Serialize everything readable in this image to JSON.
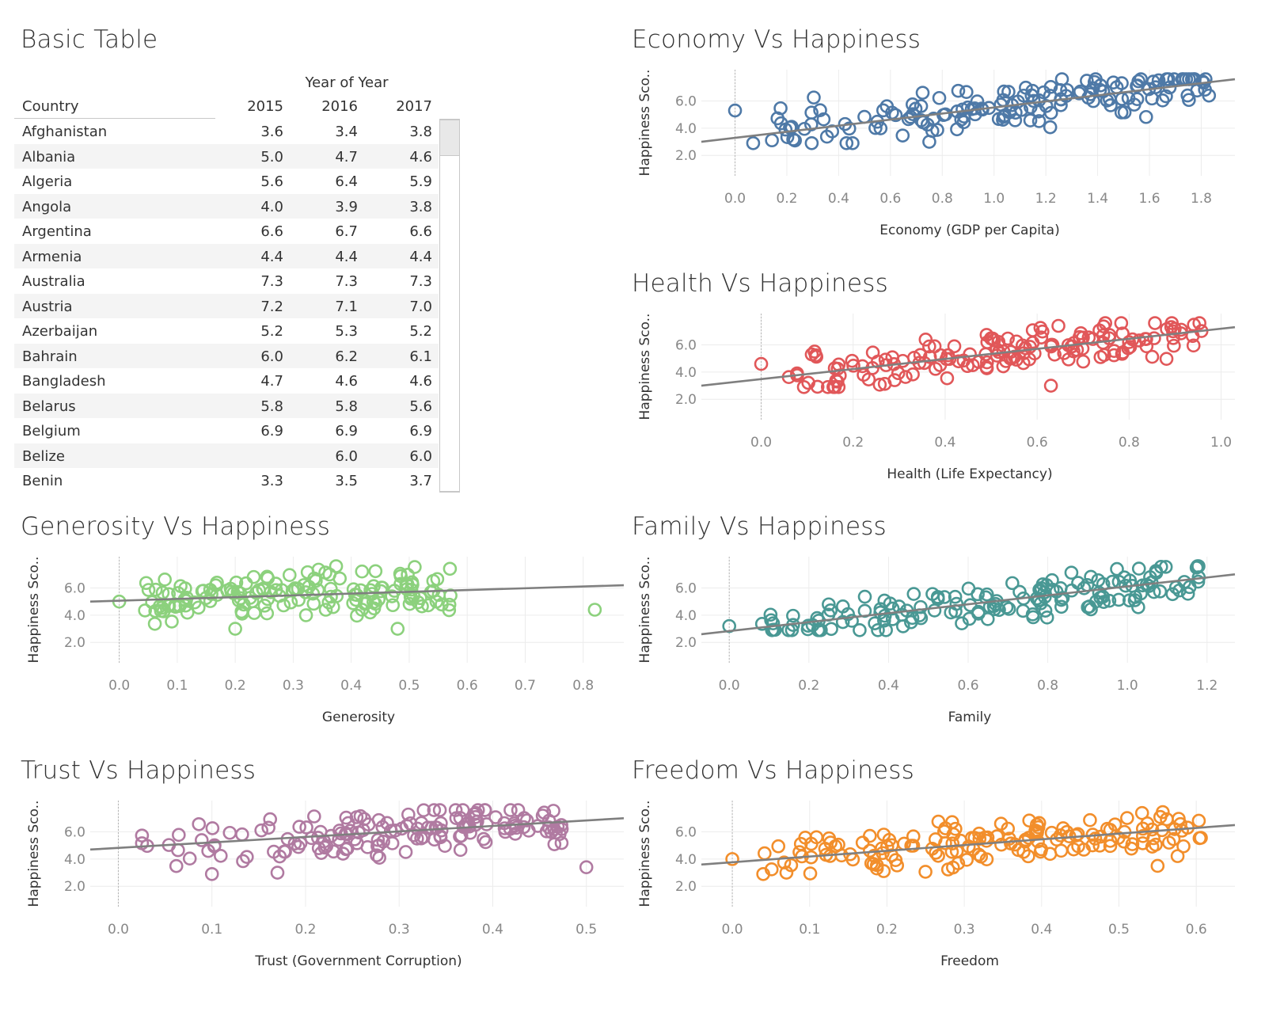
{
  "table": {
    "title": "Basic Table",
    "column_group": "Year of Year",
    "country_header": "Country",
    "years": [
      "2015",
      "2016",
      "2017"
    ],
    "rows": [
      {
        "country": "Afghanistan",
        "v": [
          "3.6",
          "3.4",
          "3.8"
        ]
      },
      {
        "country": "Albania",
        "v": [
          "5.0",
          "4.7",
          "4.6"
        ]
      },
      {
        "country": "Algeria",
        "v": [
          "5.6",
          "6.4",
          "5.9"
        ]
      },
      {
        "country": "Angola",
        "v": [
          "4.0",
          "3.9",
          "3.8"
        ]
      },
      {
        "country": "Argentina",
        "v": [
          "6.6",
          "6.7",
          "6.6"
        ]
      },
      {
        "country": "Armenia",
        "v": [
          "4.4",
          "4.4",
          "4.4"
        ]
      },
      {
        "country": "Australia",
        "v": [
          "7.3",
          "7.3",
          "7.3"
        ]
      },
      {
        "country": "Austria",
        "v": [
          "7.2",
          "7.1",
          "7.0"
        ]
      },
      {
        "country": "Azerbaijan",
        "v": [
          "5.2",
          "5.3",
          "5.2"
        ]
      },
      {
        "country": "Bahrain",
        "v": [
          "6.0",
          "6.2",
          "6.1"
        ]
      },
      {
        "country": "Bangladesh",
        "v": [
          "4.7",
          "4.6",
          "4.6"
        ]
      },
      {
        "country": "Belarus",
        "v": [
          "5.8",
          "5.8",
          "5.6"
        ]
      },
      {
        "country": "Belgium",
        "v": [
          "6.9",
          "6.9",
          "6.9"
        ]
      },
      {
        "country": "Belize",
        "v": [
          "",
          "6.0",
          "6.0"
        ]
      },
      {
        "country": "Benin",
        "v": [
          "3.3",
          "3.5",
          "3.7"
        ]
      }
    ]
  },
  "chart_data": [
    {
      "id": "economy",
      "type": "scatter",
      "title": "Economy Vs Happiness",
      "xlabel": "Economy (GDP per Capita)",
      "ylabel": "Happiness Sco..",
      "color": "#4e79a7",
      "xlim": [
        -0.13,
        1.93
      ],
      "ylim": [
        0.5,
        8.3
      ],
      "xticks": [
        0,
        0.2,
        0.4,
        0.6,
        0.8,
        1.0,
        1.2,
        1.4,
        1.6,
        1.8
      ],
      "yticks": [
        2.0,
        4.0,
        6.0
      ],
      "trend": [
        [
          -0.13,
          3.0
        ],
        [
          1.93,
          7.6
        ]
      ],
      "seed": 11,
      "n": 155,
      "xrange": [
        0.0,
        1.83
      ],
      "outliers": [
        [
          0.0,
          5.3
        ],
        [
          1.83,
          6.4
        ],
        [
          0.07,
          2.9
        ],
        [
          0.75,
          3.0
        ]
      ]
    },
    {
      "id": "health",
      "type": "scatter",
      "title": "Health Vs Happiness",
      "xlabel": "Health (Life Expectancy)",
      "ylabel": "Happiness Sco..",
      "color": "#e15759",
      "xlim": [
        -0.13,
        1.03
      ],
      "ylim": [
        0.5,
        8.3
      ],
      "xticks": [
        0,
        0.2,
        0.4,
        0.6,
        0.8,
        1.0
      ],
      "yticks": [
        2.0,
        4.0,
        6.0
      ],
      "trend": [
        [
          -0.13,
          3.0
        ],
        [
          1.03,
          7.3
        ]
      ],
      "seed": 23,
      "n": 155,
      "xrange": [
        0.0,
        0.96
      ],
      "outliers": [
        [
          0.0,
          4.6
        ],
        [
          0.63,
          3.0
        ],
        [
          0.11,
          5.3
        ],
        [
          0.16,
          2.9
        ]
      ]
    },
    {
      "id": "generosity",
      "type": "scatter",
      "title": "Generosity Vs Happiness",
      "xlabel": "Generosity",
      "ylabel": "Happiness Sco..",
      "color": "#8cd17d",
      "xlim": [
        -0.05,
        0.87
      ],
      "ylim": [
        0.5,
        8.3
      ],
      "xticks": [
        0,
        0.1,
        0.2,
        0.3,
        0.4,
        0.5,
        0.6,
        0.7,
        0.8
      ],
      "yticks": [
        2.0,
        4.0,
        6.0
      ],
      "trend": [
        [
          -0.05,
          5.0
        ],
        [
          0.87,
          6.2
        ]
      ],
      "seed": 37,
      "n": 155,
      "xrange": [
        0.0,
        0.58
      ],
      "outliers": [
        [
          0.0,
          5.0
        ],
        [
          0.82,
          4.4
        ],
        [
          0.48,
          3.0
        ],
        [
          0.2,
          3.0
        ]
      ]
    },
    {
      "id": "family",
      "type": "scatter",
      "title": "Family Vs Happiness",
      "xlabel": "Family",
      "ylabel": "Happiness Sco..",
      "color": "#499894",
      "xlim": [
        -0.07,
        1.27
      ],
      "ylim": [
        0.5,
        8.3
      ],
      "xticks": [
        0,
        0.2,
        0.4,
        0.6,
        0.8,
        1.0,
        1.2
      ],
      "yticks": [
        2.0,
        4.0,
        6.0
      ],
      "trend": [
        [
          -0.07,
          2.6
        ],
        [
          1.27,
          7.0
        ]
      ],
      "seed": 53,
      "n": 155,
      "xrange": [
        0.0,
        1.18
      ],
      "outliers": [
        [
          0.0,
          3.2
        ],
        [
          0.23,
          2.9
        ],
        [
          0.11,
          3.4
        ]
      ]
    },
    {
      "id": "trust",
      "type": "scatter",
      "title": "Trust Vs Happiness",
      "xlabel": "Trust (Government Corruption)",
      "ylabel": "Happiness Sco..",
      "color": "#b07aa1",
      "xlim": [
        -0.03,
        0.54
      ],
      "ylim": [
        0.5,
        8.3
      ],
      "xticks": [
        0,
        0.1,
        0.2,
        0.3,
        0.4,
        0.5
      ],
      "yticks": [
        2.0,
        4.0,
        6.0
      ],
      "trend": [
        [
          -0.03,
          4.7
        ],
        [
          0.54,
          7.0
        ]
      ],
      "seed": 71,
      "n": 155,
      "xrange": [
        0.0,
        0.48
      ],
      "outliers": [
        [
          0.5,
          3.4
        ],
        [
          0.17,
          3.0
        ],
        [
          0.1,
          2.9
        ]
      ]
    },
    {
      "id": "freedom",
      "type": "scatter",
      "title": "Freedom Vs Happiness",
      "xlabel": "Freedom",
      "ylabel": "Happiness Sco..",
      "color": "#f28e2b",
      "xlim": [
        -0.04,
        0.65
      ],
      "ylim": [
        0.5,
        8.3
      ],
      "xticks": [
        0,
        0.1,
        0.2,
        0.3,
        0.4,
        0.5,
        0.6
      ],
      "yticks": [
        2.0,
        4.0,
        6.0
      ],
      "trend": [
        [
          -0.04,
          3.6
        ],
        [
          0.65,
          6.5
        ]
      ],
      "seed": 89,
      "n": 155,
      "xrange": [
        0.0,
        0.61
      ],
      "outliers": [
        [
          0.0,
          4.0
        ],
        [
          0.04,
          2.9
        ],
        [
          0.07,
          3.0
        ],
        [
          0.55,
          3.5
        ]
      ]
    }
  ]
}
